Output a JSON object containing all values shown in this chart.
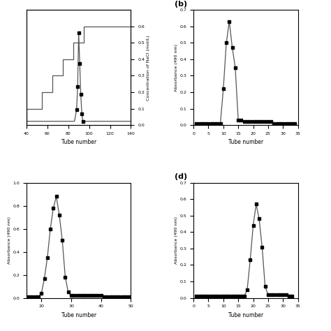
{
  "panel_a": {
    "nacl_x": [
      40,
      40,
      55,
      55,
      65,
      65,
      75,
      75,
      85,
      85,
      95,
      95,
      140
    ],
    "nacl_y": [
      0.0,
      0.1,
      0.1,
      0.2,
      0.2,
      0.3,
      0.3,
      0.4,
      0.4,
      0.5,
      0.5,
      0.6,
      0.6
    ],
    "abs_x": [
      40,
      42,
      44,
      46,
      48,
      50,
      52,
      54,
      56,
      58,
      60,
      62,
      64,
      66,
      68,
      70,
      72,
      74,
      76,
      78,
      80,
      82,
      84,
      86,
      88,
      90,
      92,
      94,
      96,
      98,
      100,
      102,
      104,
      106,
      108,
      110,
      112,
      114,
      116,
      118,
      120,
      122,
      124,
      126,
      128,
      130,
      132,
      134,
      136,
      138,
      140
    ],
    "abs_y": [
      0.005,
      0.005,
      0.005,
      0.005,
      0.005,
      0.005,
      0.005,
      0.005,
      0.005,
      0.005,
      0.005,
      0.005,
      0.005,
      0.005,
      0.005,
      0.005,
      0.005,
      0.005,
      0.005,
      0.005,
      0.005,
      0.005,
      0.005,
      0.005,
      0.005,
      0.005,
      0.005,
      0.005,
      0.005,
      0.005,
      0.005,
      0.005,
      0.005,
      0.005,
      0.005,
      0.005,
      0.005,
      0.005,
      0.005,
      0.005,
      0.005,
      0.005,
      0.005,
      0.005,
      0.005,
      0.005,
      0.005,
      0.005,
      0.005,
      0.005,
      0.005
    ],
    "peak_x": [
      88,
      89,
      90,
      91,
      92,
      93,
      94
    ],
    "peak_y": [
      0.02,
      0.05,
      0.12,
      0.08,
      0.04,
      0.015,
      0.005
    ],
    "xlim": [
      40,
      140
    ],
    "ylim_left": [
      0.0,
      0.15
    ],
    "ylim_right": [
      0.0,
      0.7
    ],
    "xlabel": "Tube number",
    "ylabel_right": "Concentration of NaCl (mol/L)"
  },
  "panel_b": {
    "x": [
      1,
      2,
      3,
      4,
      5,
      6,
      7,
      8,
      9,
      10,
      11,
      12,
      13,
      14,
      15,
      16,
      17,
      18,
      19,
      20,
      21,
      22,
      23,
      24,
      25,
      26,
      27,
      28,
      29,
      30,
      31,
      32,
      33,
      34
    ],
    "y": [
      0.01,
      0.01,
      0.01,
      0.01,
      0.01,
      0.01,
      0.01,
      0.01,
      0.01,
      0.22,
      0.5,
      0.63,
      0.47,
      0.35,
      0.03,
      0.03,
      0.02,
      0.02,
      0.02,
      0.02,
      0.02,
      0.02,
      0.02,
      0.02,
      0.02,
      0.02,
      0.01,
      0.01,
      0.01,
      0.01,
      0.01,
      0.01,
      0.01,
      0.01
    ],
    "xlim": [
      0,
      35
    ],
    "ylim": [
      0.0,
      0.7
    ],
    "xlabel": "Tube number",
    "ylabel": "Absorbance (490 nm)",
    "label": "(b)"
  },
  "panel_c": {
    "x": [
      15,
      16,
      17,
      18,
      19,
      20,
      21,
      22,
      23,
      24,
      25,
      26,
      27,
      28,
      29,
      30,
      31,
      32,
      33,
      34,
      35,
      36,
      37,
      38,
      39,
      40,
      41,
      42,
      43,
      44,
      45,
      46,
      47,
      48,
      49,
      50
    ],
    "y": [
      0.01,
      0.01,
      0.01,
      0.01,
      0.01,
      0.04,
      0.17,
      0.35,
      0.6,
      0.78,
      0.88,
      0.72,
      0.5,
      0.18,
      0.05,
      0.02,
      0.02,
      0.02,
      0.02,
      0.02,
      0.02,
      0.02,
      0.02,
      0.02,
      0.02,
      0.02,
      0.01,
      0.01,
      0.01,
      0.01,
      0.01,
      0.01,
      0.01,
      0.01,
      0.01,
      0.01
    ],
    "xlim": [
      15,
      50
    ],
    "ylim": [
      0.0,
      1.0
    ],
    "xlabel": "Tube number",
    "ylabel": "Absorbance (490 nm)"
  },
  "panel_d": {
    "x": [
      1,
      2,
      3,
      4,
      5,
      6,
      7,
      8,
      9,
      10,
      11,
      12,
      13,
      14,
      15,
      16,
      17,
      18,
      19,
      20,
      21,
      22,
      23,
      24,
      25,
      26,
      27,
      28,
      29,
      30,
      31,
      32,
      33
    ],
    "y": [
      0.01,
      0.01,
      0.01,
      0.01,
      0.01,
      0.01,
      0.01,
      0.01,
      0.01,
      0.01,
      0.01,
      0.01,
      0.01,
      0.01,
      0.01,
      0.01,
      0.01,
      0.05,
      0.23,
      0.44,
      0.57,
      0.48,
      0.31,
      0.07,
      0.02,
      0.02,
      0.02,
      0.02,
      0.02,
      0.02,
      0.02,
      0.01,
      0.01
    ],
    "xlim": [
      0,
      35
    ],
    "ylim": [
      0.0,
      0.7
    ],
    "xlabel": "Tube number",
    "ylabel": "Absorbance (490 nm)",
    "label": "(d)"
  },
  "marker": "s",
  "markersize": 3.5,
  "linewidth": 0.9,
  "linecolor": "#555555",
  "background": "#ffffff"
}
